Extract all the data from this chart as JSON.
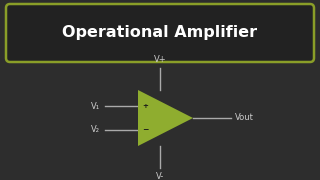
{
  "bg_color": "#2d2d2d",
  "title_text": "Operational Amplifier",
  "title_color": "#ffffff",
  "title_box_edge_color": "#8a9e28",
  "title_box_face_color": "#222222",
  "triangle_color": "#8fad2f",
  "label_color": "#cccccc",
  "line_color": "#aaaaaa",
  "v1_label": "V₁",
  "v2_label": "V₂",
  "vout_label": "Vout",
  "vplus_label": "V+",
  "vminus_label": "V-",
  "title_fontsize": 11.5,
  "label_fontsize": 6.0,
  "figsize": [
    3.2,
    1.8
  ],
  "dpi": 100
}
